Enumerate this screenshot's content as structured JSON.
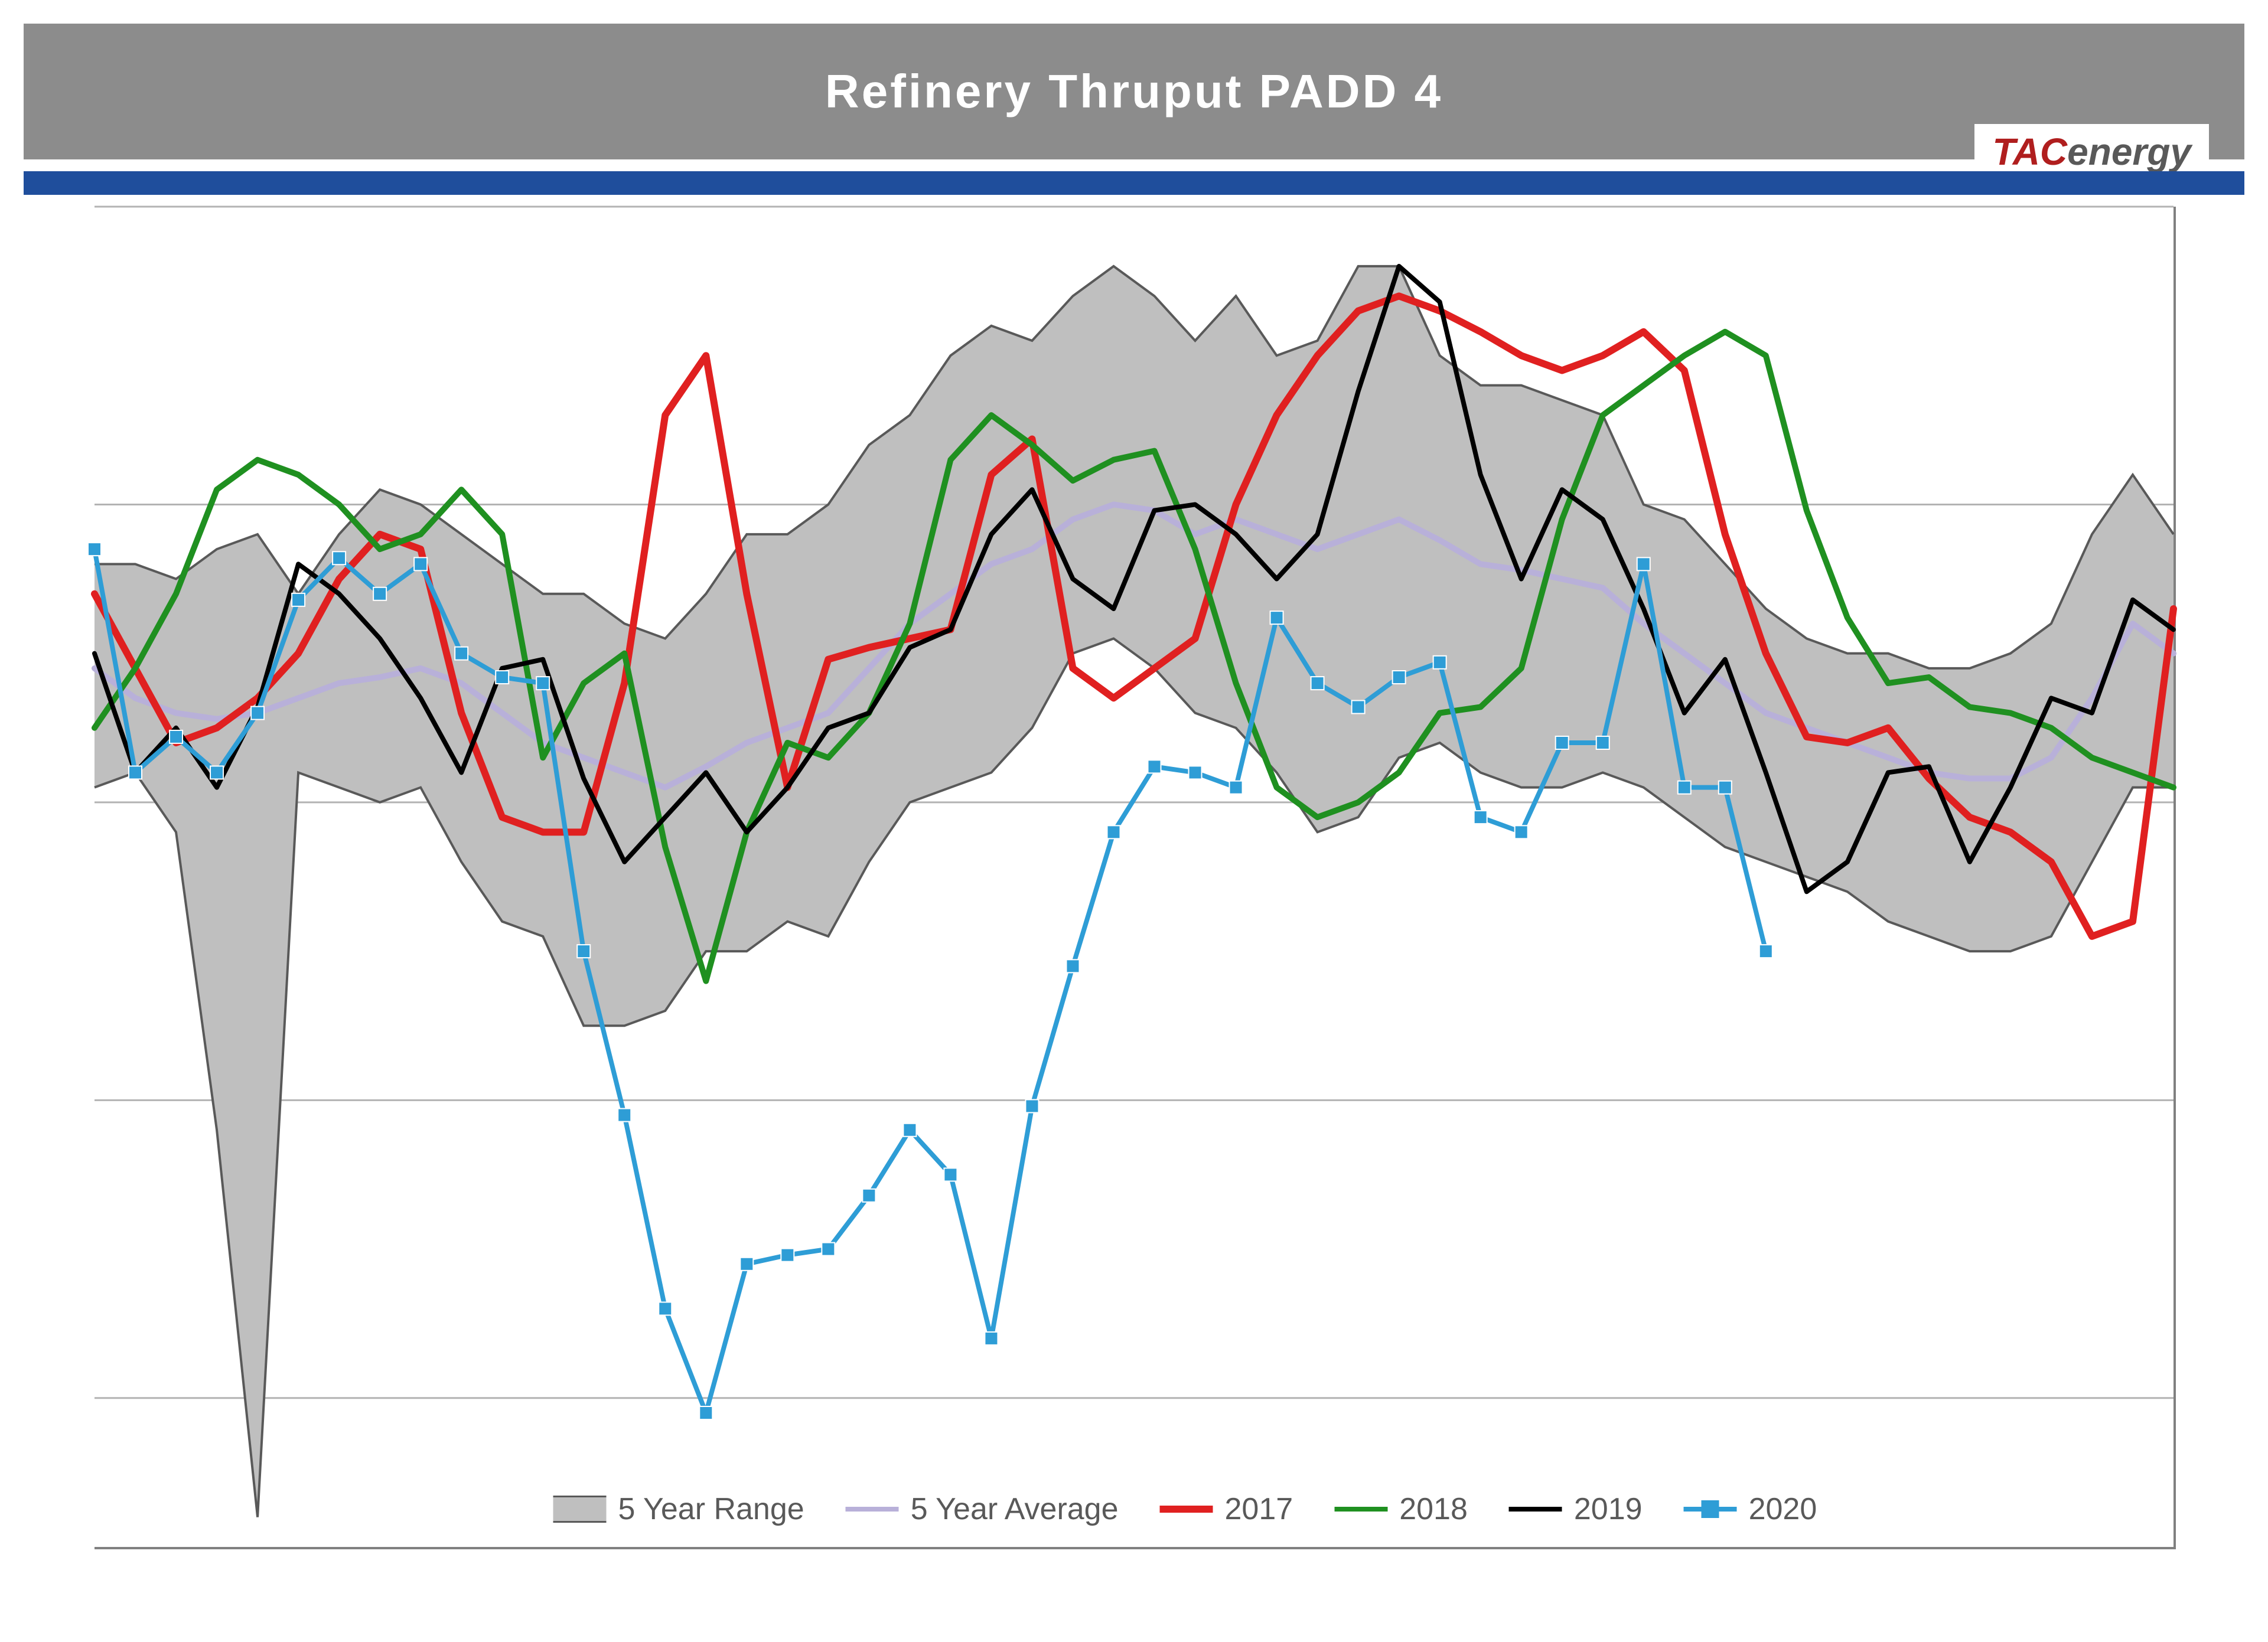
{
  "title": "Refinery Thruput PADD 4",
  "logo": {
    "tac": "TAC",
    "energy": "energy"
  },
  "chart": {
    "type": "line-area",
    "background_color": "#ffffff",
    "title_bar_color": "#8c8c8c",
    "title_text_color": "#ffffff",
    "title_fontsize": 80,
    "blue_strip_color": "#1f4e9c",
    "grid_color": "#b3b3b3",
    "axis_color": "#808080",
    "x_count": 52,
    "ylim": [
      300,
      750
    ],
    "y_gridlines": [
      350,
      450,
      550,
      650,
      750
    ],
    "range_band": {
      "label": "5 Year Range",
      "fill": "#bfbfbf",
      "border": "#595959",
      "upper": [
        630,
        630,
        625,
        635,
        640,
        620,
        640,
        655,
        650,
        640,
        630,
        620,
        620,
        610,
        605,
        620,
        640,
        640,
        650,
        670,
        680,
        700,
        710,
        705,
        720,
        730,
        720,
        705,
        720,
        700,
        705,
        730,
        730,
        700,
        690,
        690,
        685,
        680,
        650,
        645,
        630,
        615,
        605,
        600,
        600,
        595,
        595,
        600,
        610,
        640,
        660,
        640
      ],
      "lower": [
        555,
        560,
        540,
        440,
        310,
        560,
        555,
        550,
        555,
        530,
        510,
        505,
        475,
        475,
        480,
        500,
        500,
        510,
        505,
        530,
        550,
        555,
        560,
        575,
        600,
        605,
        595,
        580,
        575,
        560,
        540,
        545,
        565,
        570,
        560,
        555,
        555,
        560,
        555,
        545,
        535,
        530,
        525,
        520,
        510,
        505,
        500,
        500,
        505,
        530,
        555,
        555
      ]
    },
    "series": [
      {
        "name": "5 Year Average",
        "label": "5 Year Average",
        "color": "#b8b0d9",
        "width": 10,
        "markers": false,
        "values": [
          595,
          585,
          580,
          578,
          580,
          585,
          590,
          592,
          595,
          590,
          580,
          570,
          565,
          560,
          555,
          562,
          570,
          575,
          580,
          595,
          610,
          620,
          630,
          635,
          645,
          650,
          648,
          640,
          645,
          640,
          635,
          640,
          645,
          638,
          630,
          628,
          625,
          622,
          610,
          600,
          590,
          580,
          575,
          570,
          565,
          560,
          558,
          558,
          565,
          585,
          610,
          600
        ]
      },
      {
        "name": "2017",
        "label": "2017",
        "color": "#e02020",
        "width": 12,
        "markers": false,
        "values": [
          620,
          595,
          570,
          575,
          585,
          600,
          625,
          640,
          635,
          580,
          545,
          540,
          540,
          590,
          680,
          700,
          620,
          555,
          598,
          602,
          605,
          608,
          660,
          672,
          595,
          585,
          595,
          605,
          650,
          680,
          700,
          715,
          720,
          715,
          708,
          700,
          695,
          700,
          708,
          695,
          640,
          600,
          572,
          570,
          575,
          558,
          545,
          540,
          530,
          505,
          510,
          615
        ]
      },
      {
        "name": "2018",
        "label": "2018",
        "color": "#1f9020",
        "width": 10,
        "markers": false,
        "values": [
          575,
          595,
          620,
          655,
          665,
          660,
          650,
          635,
          640,
          655,
          640,
          565,
          590,
          600,
          535,
          490,
          540,
          570,
          565,
          580,
          610,
          665,
          680,
          670,
          658,
          665,
          668,
          635,
          590,
          555,
          545,
          550,
          560,
          580,
          582,
          595,
          645,
          680,
          690,
          700,
          708,
          700,
          648,
          612,
          590,
          592,
          582,
          580,
          575,
          565,
          560,
          555
        ]
      },
      {
        "name": "2019",
        "label": "2019",
        "color": "#000000",
        "width": 8,
        "markers": false,
        "values": [
          600,
          560,
          575,
          555,
          582,
          630,
          620,
          605,
          585,
          560,
          595,
          598,
          558,
          530,
          545,
          560,
          540,
          555,
          575,
          580,
          602,
          608,
          640,
          655,
          625,
          615,
          648,
          650,
          640,
          625,
          640,
          688,
          730,
          718,
          660,
          625,
          655,
          645,
          615,
          580,
          598,
          560,
          520,
          530,
          560,
          562,
          530,
          555,
          585,
          580,
          618,
          608
        ]
      },
      {
        "name": "2020",
        "label": "2020",
        "color": "#2e9dd6",
        "width": 8,
        "markers": true,
        "marker_size": 22,
        "values": [
          635,
          560,
          572,
          560,
          580,
          618,
          632,
          620,
          630,
          600,
          592,
          590,
          500,
          445,
          380,
          345,
          395,
          398,
          400,
          418,
          440,
          425,
          370,
          448,
          495,
          540,
          562,
          560,
          555,
          612,
          590,
          582,
          592,
          597,
          545,
          540,
          570,
          570,
          630,
          555,
          555,
          500
        ]
      }
    ],
    "legend": {
      "fontsize": 52,
      "text_color": "#595959",
      "items": [
        "5 Year Range",
        "5 Year Average",
        "2017",
        "2018",
        "2019",
        "2020"
      ]
    }
  }
}
